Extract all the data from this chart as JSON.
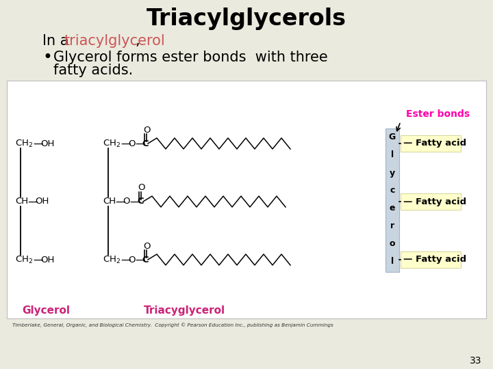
{
  "bg_color": "#eaeade",
  "white_box_color": "#ffffff",
  "title": "Triacylglycerols",
  "title_fontsize": 24,
  "line1_color": "#cc5555",
  "line1_fontsize": 15,
  "bullet_fontsize": 15,
  "glycerol_label": "Glycerol",
  "triacylglycerol_label": "Triacyglycerol",
  "ester_bonds_label": "Ester bonds",
  "ester_bonds_color": "#ff00aa",
  "fatty_acid_label": "Fatty acid",
  "label_color": "#cc2277",
  "copyright": "Timberlake, General, Organic, and Biological Chemistry.  Copyright © Pearson Education Inc., publishing as Benjamin Cummings",
  "page_number": "33"
}
